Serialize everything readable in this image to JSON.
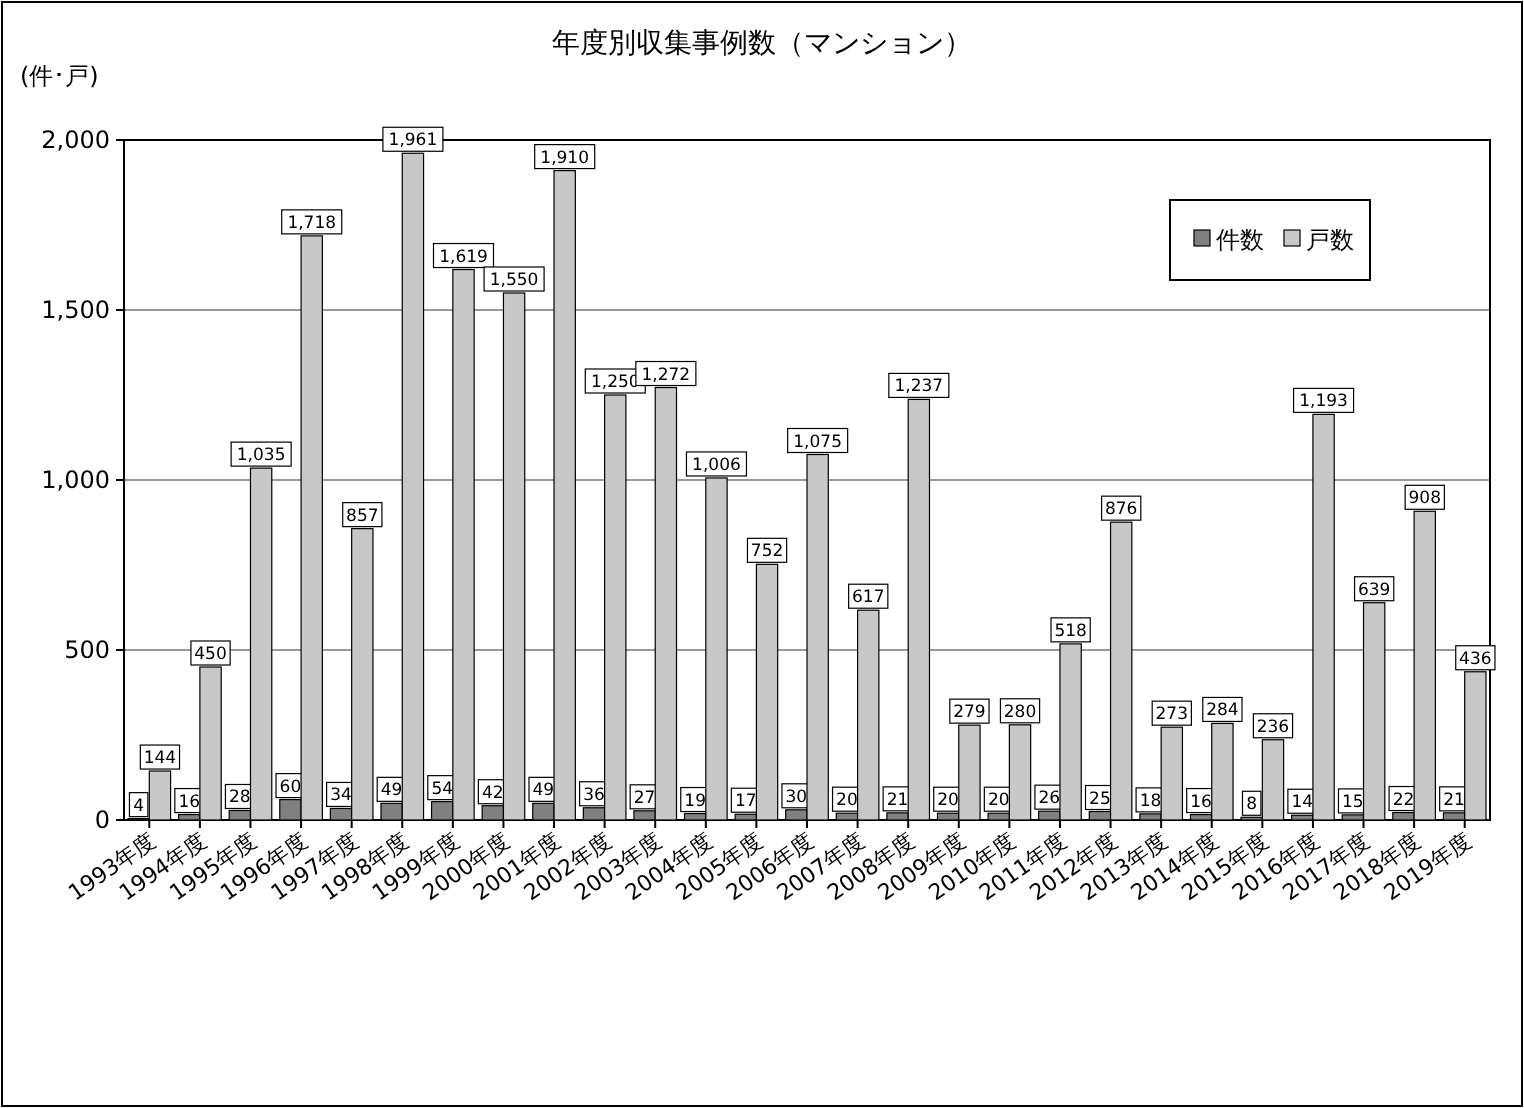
{
  "chart_data": {
    "type": "bar",
    "title": "年度別収集事例数（マンション）",
    "ylabel": "(件･戸)",
    "categories": [
      "1993年度",
      "1994年度",
      "1995年度",
      "1996年度",
      "1997年度",
      "1998年度",
      "1999年度",
      "2000年度",
      "2001年度",
      "2002年度",
      "2003年度",
      "2004年度",
      "2005年度",
      "2006年度",
      "2007年度",
      "2008年度",
      "2009年度",
      "2010年度",
      "2011年度",
      "2012年度",
      "2013年度",
      "2014年度",
      "2015年度",
      "2016年度",
      "2017年度",
      "2018年度",
      "2019年度"
    ],
    "series": [
      {
        "name": "件数",
        "color": "#808080",
        "values": [
          4,
          16,
          28,
          60,
          34,
          49,
          54,
          42,
          49,
          36,
          27,
          19,
          17,
          30,
          20,
          21,
          20,
          20,
          26,
          25,
          18,
          16,
          8,
          14,
          15,
          22,
          21
        ],
        "value_labels": [
          "4",
          "16",
          "28",
          "60",
          "34",
          "49",
          "54",
          "42",
          "49",
          "36",
          "27",
          "19",
          "17",
          "30",
          "20",
          "21",
          "20",
          "20",
          "26",
          "25",
          "18",
          "16",
          "8",
          "14",
          "15",
          "22",
          "21"
        ]
      },
      {
        "name": "戸数",
        "color": "#c8c8c8",
        "values": [
          144,
          450,
          1035,
          1718,
          857,
          1961,
          1619,
          1550,
          1910,
          1250,
          1272,
          1006,
          752,
          1075,
          617,
          1237,
          279,
          280,
          518,
          876,
          273,
          284,
          236,
          1193,
          639,
          908,
          436
        ],
        "value_labels": [
          "144",
          "450",
          "1,035",
          "1,718",
          "857",
          "1,961",
          "1,619",
          "1,550",
          "1,910",
          "1,250",
          "1,272",
          "1,006",
          "752",
          "1,075",
          "617",
          "1,237",
          "279",
          "280",
          "518",
          "876",
          "273",
          "284",
          "236",
          "1,193",
          "639",
          "908",
          "436"
        ]
      }
    ],
    "ylim": [
      0,
      2000
    ],
    "yticks": [
      0,
      500,
      {
        "value": 1000,
        "label": "1,000"
      },
      {
        "value": 1500,
        "label": "1,500"
      },
      {
        "value": 2000,
        "label": "2,000"
      }
    ],
    "grid": "y",
    "legend": "top right"
  }
}
